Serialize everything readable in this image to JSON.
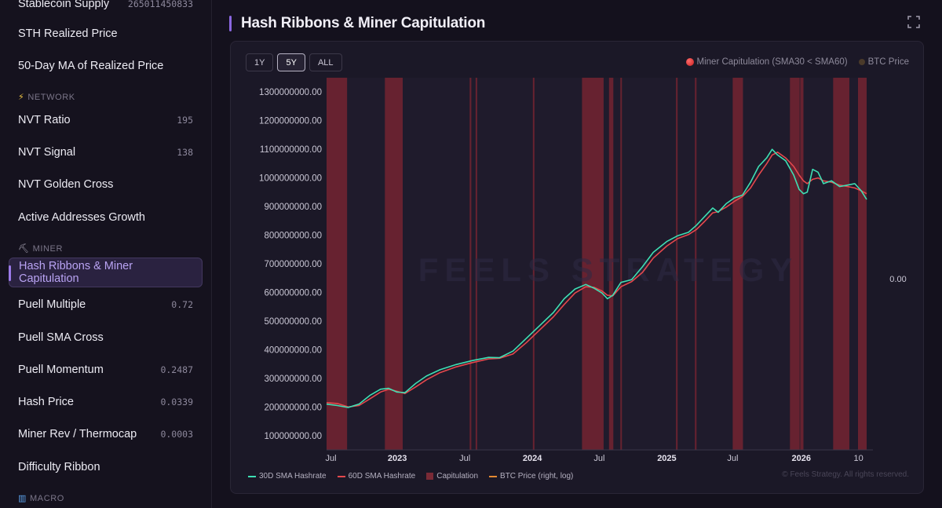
{
  "sidebar": {
    "items": [
      {
        "label": "Stablecoin Supply",
        "value": "265011450833",
        "top": -14
      },
      {
        "label": "STH Realized Price",
        "value": "",
        "top": 24
      },
      {
        "label": "50-Day MA of Realized Price",
        "value": "",
        "top": 65
      }
    ],
    "network_section": "NETWORK",
    "network_items": [
      {
        "label": "NVT Ratio",
        "value": "195"
      },
      {
        "label": "NVT Signal",
        "value": "138"
      },
      {
        "label": "NVT Golden Cross",
        "value": ""
      },
      {
        "label": "Active Addresses Growth",
        "value": ""
      }
    ],
    "miner_section": "MINER",
    "miner_items": [
      {
        "label": "Hash Ribbons & Miner Capitulation",
        "value": ""
      },
      {
        "label": "Puell Multiple",
        "value": "0.72"
      },
      {
        "label": "Puell SMA Cross",
        "value": ""
      },
      {
        "label": "Puell Momentum",
        "value": "0.2487"
      },
      {
        "label": "Hash Price",
        "value": "0.0339"
      },
      {
        "label": "Miner Rev / Thermocap",
        "value": "0.0003"
      },
      {
        "label": "Difficulty Ribbon",
        "value": ""
      }
    ],
    "macro_section": "MACRO"
  },
  "main": {
    "title": "Hash Ribbons & Miner Capitulation",
    "ranges": [
      "1Y",
      "5Y",
      "ALL"
    ],
    "active_range": "5Y",
    "top_legend": {
      "capitulation": "Miner Capitulation (SMA30 < SMA60)",
      "btc": "BTC Price"
    },
    "bottom_legend": {
      "sma30": "30D SMA Hashrate",
      "sma60": "60D SMA Hashrate",
      "cap": "Capitulation",
      "btc": "BTC Price (right, log)"
    },
    "watermark": "FEELS STRATEGY",
    "copyright": "© Feels Strategy. All rights reserved."
  },
  "colors": {
    "sma30": "#3ee0b4",
    "sma60": "#e5484d",
    "cap": "#6b2330",
    "btc": "#e58a32",
    "accent": "#8a67e0"
  },
  "chart_data": {
    "type": "line",
    "x_ticks": [
      "Jul",
      "2023",
      "Jul",
      "2024",
      "Jul",
      "2025",
      "Jul",
      "2026",
      "10"
    ],
    "y_ticks": [
      "1300000000.00",
      "1200000000.00",
      "1100000000.00",
      "1000000000.00",
      "900000000.00",
      "800000000.00",
      "700000000.00",
      "600000000.00",
      "500000000.00",
      "400000000.00",
      "300000000.00",
      "200000000.00",
      "100000000.00"
    ],
    "y_right_tick": "0.00",
    "ylim": [
      50000000,
      1350000000
    ],
    "xlim": [
      0,
      1
    ],
    "capitulation_bands": [
      [
        0.0,
        0.038
      ],
      [
        0.108,
        0.141
      ],
      [
        0.265,
        0.268
      ],
      [
        0.276,
        0.278
      ],
      [
        0.382,
        0.384
      ],
      [
        0.473,
        0.513
      ],
      [
        0.523,
        0.531
      ],
      [
        0.544,
        0.546
      ],
      [
        0.647,
        0.65
      ],
      [
        0.682,
        0.685
      ],
      [
        0.752,
        0.771
      ],
      [
        0.858,
        0.876
      ],
      [
        0.877,
        0.883
      ],
      [
        0.938,
        0.968
      ],
      [
        0.984,
        1.0
      ]
    ],
    "sma30": [
      [
        0.0,
        210000000.0
      ],
      [
        0.02,
        205000000.0
      ],
      [
        0.04,
        198000000.0
      ],
      [
        0.06,
        210000000.0
      ],
      [
        0.08,
        240000000.0
      ],
      [
        0.1,
        262000000.0
      ],
      [
        0.115,
        265000000.0
      ],
      [
        0.13,
        252000000.0
      ],
      [
        0.145,
        250000000.0
      ],
      [
        0.165,
        282000000.0
      ],
      [
        0.185,
        308000000.0
      ],
      [
        0.21,
        330000000.0
      ],
      [
        0.24,
        348000000.0
      ],
      [
        0.27,
        362000000.0
      ],
      [
        0.3,
        373000000.0
      ],
      [
        0.32,
        372000000.0
      ],
      [
        0.345,
        395000000.0
      ],
      [
        0.37,
        440000000.0
      ],
      [
        0.395,
        485000000.0
      ],
      [
        0.42,
        530000000.0
      ],
      [
        0.44,
        578000000.0
      ],
      [
        0.46,
        612000000.0
      ],
      [
        0.48,
        628000000.0
      ],
      [
        0.495,
        615000000.0
      ],
      [
        0.51,
        598000000.0
      ],
      [
        0.52,
        578000000.0
      ],
      [
        0.53,
        590000000.0
      ],
      [
        0.545,
        635000000.0
      ],
      [
        0.565,
        645000000.0
      ],
      [
        0.585,
        690000000.0
      ],
      [
        0.605,
        740000000.0
      ],
      [
        0.63,
        778000000.0
      ],
      [
        0.65,
        798000000.0
      ],
      [
        0.67,
        810000000.0
      ],
      [
        0.685,
        835000000.0
      ],
      [
        0.7,
        865000000.0
      ],
      [
        0.715,
        895000000.0
      ],
      [
        0.725,
        880000000.0
      ],
      [
        0.74,
        910000000.0
      ],
      [
        0.755,
        930000000.0
      ],
      [
        0.77,
        940000000.0
      ],
      [
        0.785,
        985000000.0
      ],
      [
        0.8,
        1040000000.0
      ],
      [
        0.815,
        1070000000.0
      ],
      [
        0.825,
        1100000000.0
      ],
      [
        0.835,
        1080000000.0
      ],
      [
        0.85,
        1060000000.0
      ],
      [
        0.865,
        1010000000.0
      ],
      [
        0.875,
        960000000.0
      ],
      [
        0.883,
        945000000.0
      ],
      [
        0.89,
        950000000.0
      ],
      [
        0.9,
        1030000000.0
      ],
      [
        0.91,
        1020000000.0
      ],
      [
        0.92,
        980000000.0
      ],
      [
        0.935,
        990000000.0
      ],
      [
        0.95,
        970000000.0
      ],
      [
        0.965,
        975000000.0
      ],
      [
        0.978,
        980000000.0
      ],
      [
        0.99,
        955000000.0
      ],
      [
        1.0,
        925000000.0
      ]
    ],
    "sma60": [
      [
        0.0,
        215000000.0
      ],
      [
        0.02,
        212000000.0
      ],
      [
        0.04,
        200000000.0
      ],
      [
        0.06,
        205000000.0
      ],
      [
        0.08,
        228000000.0
      ],
      [
        0.1,
        252000000.0
      ],
      [
        0.115,
        262000000.0
      ],
      [
        0.13,
        255000000.0
      ],
      [
        0.145,
        247000000.0
      ],
      [
        0.165,
        270000000.0
      ],
      [
        0.185,
        295000000.0
      ],
      [
        0.21,
        320000000.0
      ],
      [
        0.24,
        340000000.0
      ],
      [
        0.27,
        355000000.0
      ],
      [
        0.3,
        368000000.0
      ],
      [
        0.32,
        370000000.0
      ],
      [
        0.345,
        385000000.0
      ],
      [
        0.37,
        425000000.0
      ],
      [
        0.395,
        470000000.0
      ],
      [
        0.42,
        515000000.0
      ],
      [
        0.44,
        558000000.0
      ],
      [
        0.46,
        598000000.0
      ],
      [
        0.48,
        620000000.0
      ],
      [
        0.495,
        618000000.0
      ],
      [
        0.51,
        605000000.0
      ],
      [
        0.52,
        590000000.0
      ],
      [
        0.53,
        588000000.0
      ],
      [
        0.545,
        620000000.0
      ],
      [
        0.565,
        638000000.0
      ],
      [
        0.585,
        670000000.0
      ],
      [
        0.605,
        720000000.0
      ],
      [
        0.63,
        762000000.0
      ],
      [
        0.65,
        788000000.0
      ],
      [
        0.67,
        802000000.0
      ],
      [
        0.685,
        820000000.0
      ],
      [
        0.7,
        848000000.0
      ],
      [
        0.715,
        878000000.0
      ],
      [
        0.725,
        882000000.0
      ],
      [
        0.74,
        898000000.0
      ],
      [
        0.755,
        918000000.0
      ],
      [
        0.77,
        935000000.0
      ],
      [
        0.785,
        965000000.0
      ],
      [
        0.8,
        1010000000.0
      ],
      [
        0.815,
        1050000000.0
      ],
      [
        0.825,
        1080000000.0
      ],
      [
        0.835,
        1090000000.0
      ],
      [
        0.85,
        1070000000.0
      ],
      [
        0.865,
        1040000000.0
      ],
      [
        0.875,
        1010000000.0
      ],
      [
        0.883,
        990000000.0
      ],
      [
        0.89,
        980000000.0
      ],
      [
        0.9,
        995000000.0
      ],
      [
        0.91,
        1000000000.0
      ],
      [
        0.92,
        990000000.0
      ],
      [
        0.935,
        985000000.0
      ],
      [
        0.95,
        975000000.0
      ],
      [
        0.965,
        970000000.0
      ],
      [
        0.978,
        965000000.0
      ],
      [
        0.99,
        955000000.0
      ],
      [
        1.0,
        945000000.0
      ]
    ]
  }
}
